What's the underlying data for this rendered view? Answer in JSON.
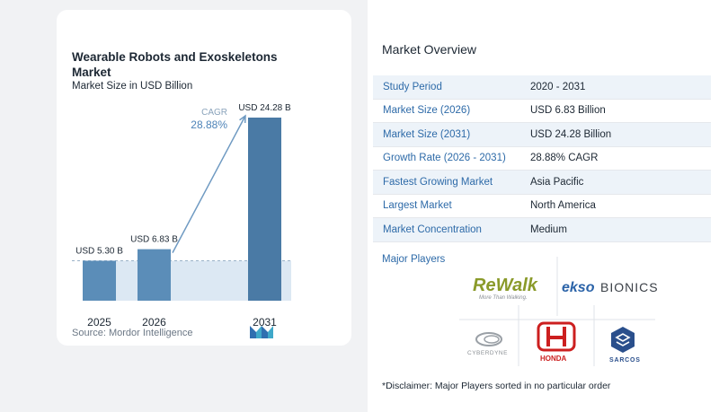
{
  "left": {
    "title": "Wearable Robots and Exoskeletons Market",
    "subtitle": "Market Size in USD Billion",
    "source": "Source:  Mordor Intelligence",
    "cagr_label": "CAGR",
    "cagr_value": "28.88%"
  },
  "chart_data": {
    "type": "bar",
    "title": "Wearable Robots and Exoskeletons Market",
    "subtitle": "Market Size in USD Billion",
    "categories": [
      "2025",
      "2026",
      "2031"
    ],
    "values": [
      5.3,
      6.83,
      24.28
    ],
    "data_labels": [
      "USD 5.30 B",
      "USD 6.83 B",
      "USD 24.28 B"
    ],
    "xlabel": "",
    "ylabel": "",
    "annotation": "CAGR 28.88%",
    "colors": {
      "bar": "#5b8db8",
      "bar_dark": "#4a7aa5",
      "band": "#dce8f3",
      "arrow": "#6f9ac2"
    }
  },
  "overview": {
    "title": "Market Overview",
    "rows": [
      {
        "label": "Study Period",
        "value": "2020 - 2031"
      },
      {
        "label": "Market Size (2026)",
        "value": "USD 6.83 Billion"
      },
      {
        "label": "Market Size (2031)",
        "value": "USD 24.28 Billion"
      },
      {
        "label": "Growth Rate (2026 - 2031)",
        "value": "28.88% CAGR"
      },
      {
        "label": "Fastest Growing Market",
        "value": "Asia Pacific"
      },
      {
        "label": "Largest Market",
        "value": "North America"
      },
      {
        "label": "Market Concentration",
        "value": "Medium"
      }
    ],
    "players_title": "Major Players",
    "players": {
      "rewalk": {
        "main": "ReWalk",
        "tagline": "More Than Walking."
      },
      "ekso": {
        "main": "ekso",
        "rest": "BIONICS"
      },
      "cyberdyne": "CYBERDYNE",
      "honda": "HONDA",
      "sarcos": "SARCOS"
    },
    "disclaimer": "*Disclaimer: Major Players sorted in no particular order"
  }
}
